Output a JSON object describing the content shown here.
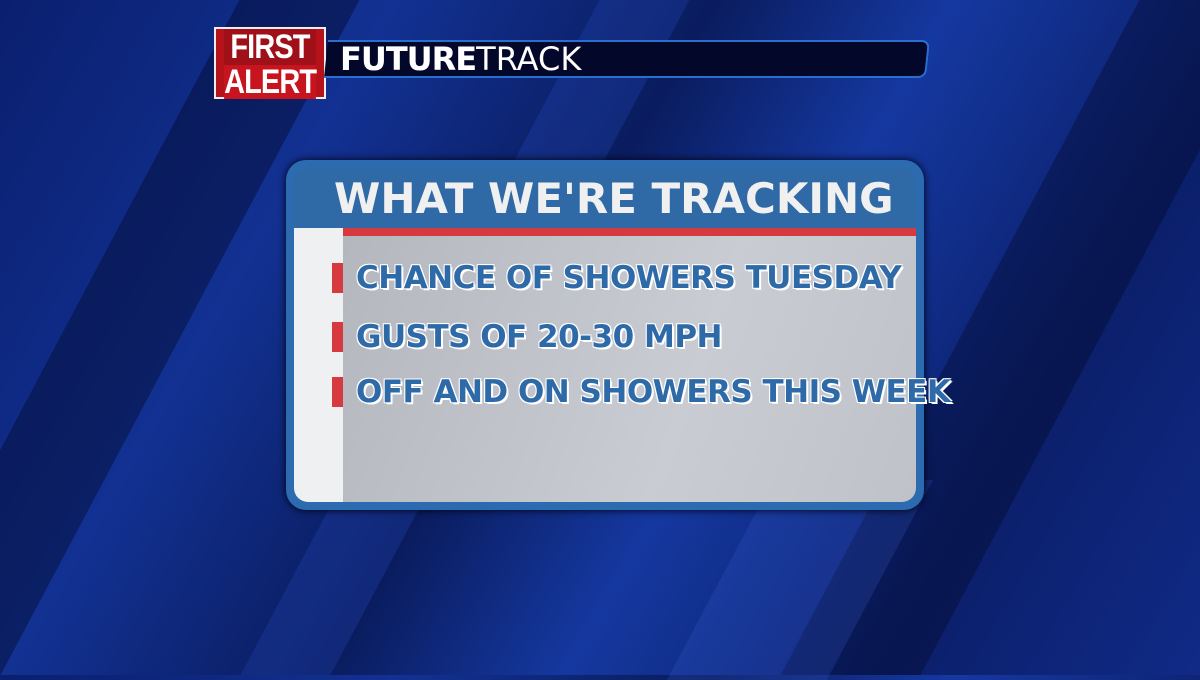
{
  "logo": {
    "line1": "FIRST",
    "line2": "ALERT"
  },
  "banner": {
    "bold": "FUTURE",
    "light": "TRACK"
  },
  "card": {
    "title": "WHAT WE'RE TRACKING",
    "items": [
      {
        "label": "CHANCE OF SHOWERS TUESDAY"
      },
      {
        "label": "GUSTS OF 20-30 MPH"
      },
      {
        "label": "OFF AND ON SHOWERS THIS WEEK"
      }
    ]
  },
  "colors": {
    "accent_red": "#d63a3e",
    "header_blue": "#2f69a6",
    "text_blue": "#2e6aa8",
    "background": "#0a1f6e"
  }
}
